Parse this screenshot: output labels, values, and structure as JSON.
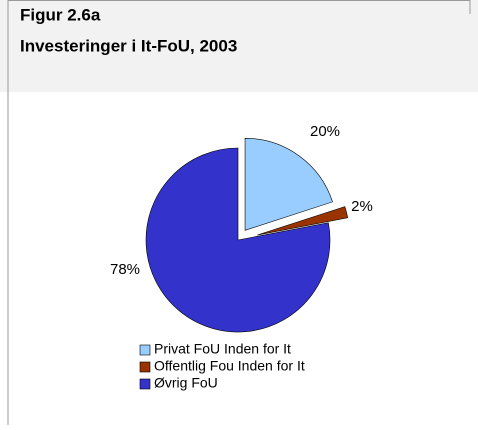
{
  "chart_data": {
    "type": "pie",
    "title": "Figur 2.6a",
    "subtitle": "Investeringer i It-FoU, 2003",
    "categories": [
      "Privat FoU Inden for It",
      "Offentlig Fou Inden for It",
      "Øvrig FoU"
    ],
    "values": [
      20,
      2,
      78
    ],
    "value_labels": [
      "20%",
      "2%",
      "78%"
    ],
    "colors": [
      "#99ccff",
      "#993300",
      "#3333cc"
    ],
    "legend": "bottom"
  }
}
